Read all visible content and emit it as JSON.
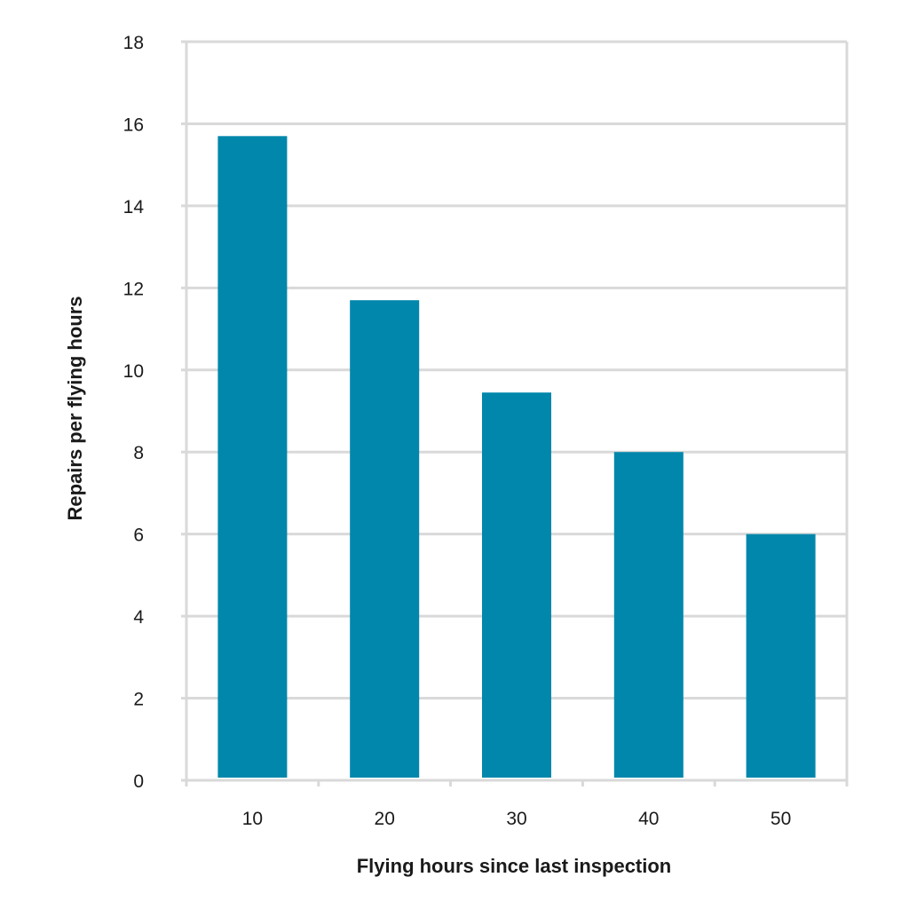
{
  "chart_data": {
    "type": "bar",
    "title": "",
    "xlabel": "Flying hours since last inspection",
    "ylabel": "Repairs per flying hours",
    "categories": [
      "10",
      "20",
      "30",
      "40",
      "50"
    ],
    "values": [
      15.7,
      11.7,
      9.45,
      8.0,
      6.0
    ],
    "ylim": [
      0,
      18
    ],
    "yticks": [
      "0",
      "2",
      "4",
      "6",
      "8",
      "10",
      "12",
      "14",
      "16",
      "18"
    ],
    "grid": true,
    "legend": "none",
    "bar_color": "#0087ab",
    "grid_color": "#d9d9d9"
  }
}
